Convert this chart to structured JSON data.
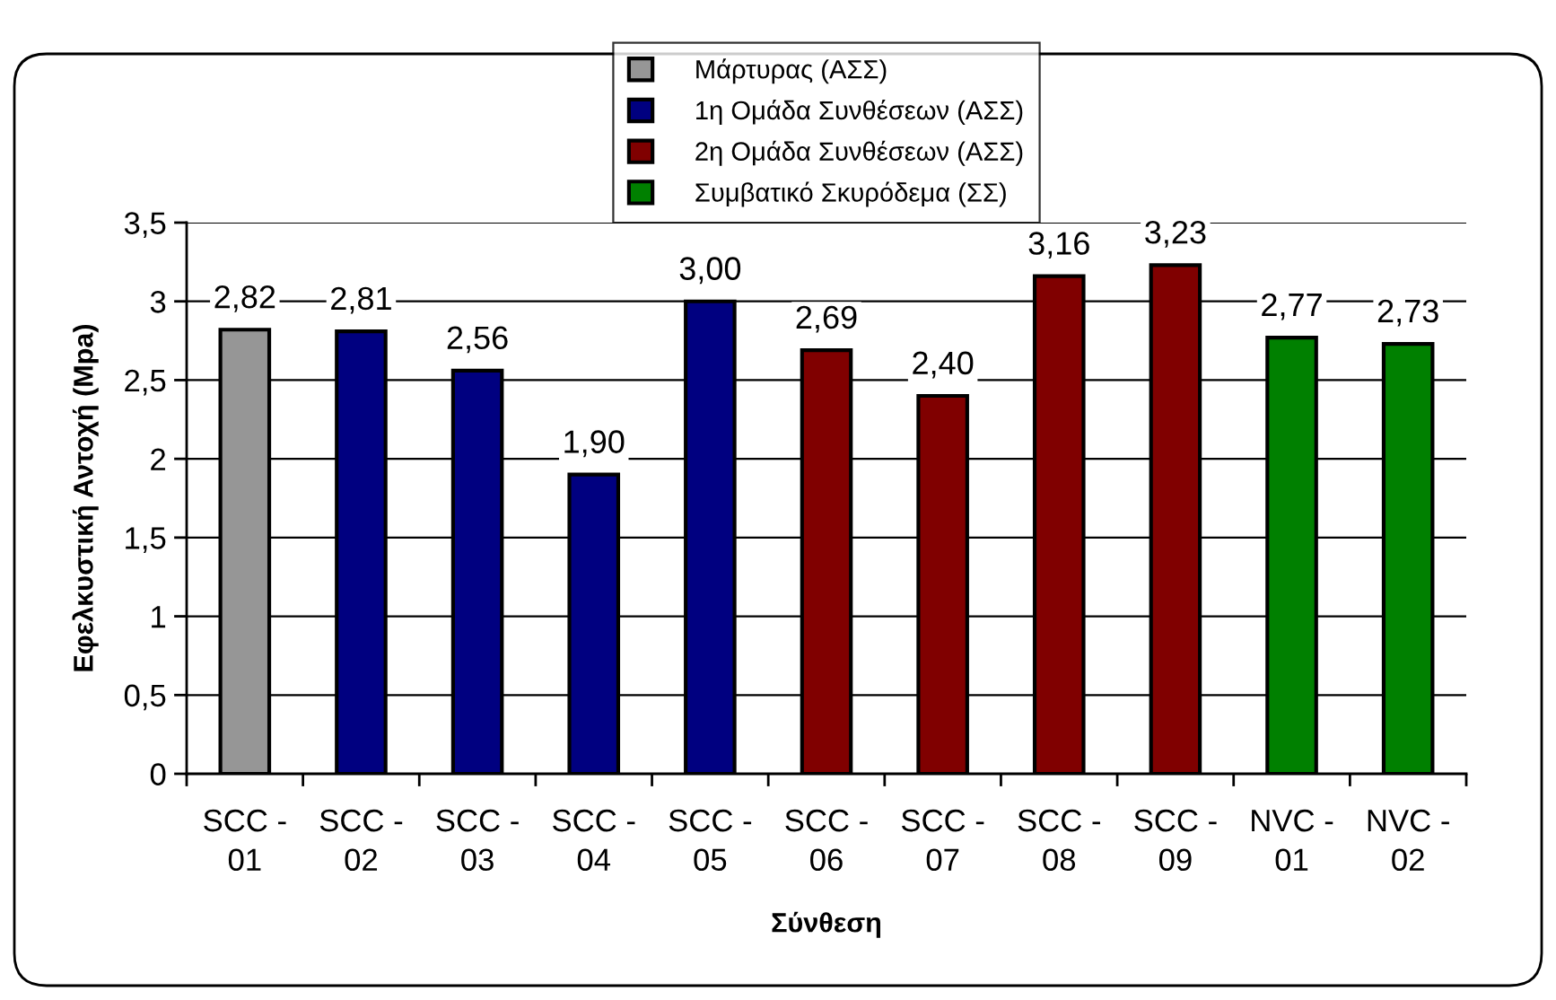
{
  "chart_data": {
    "type": "bar",
    "stacked": true,
    "categories": [
      "SCC - 01",
      "SCC - 02",
      "SCC - 03",
      "SCC - 04",
      "SCC - 05",
      "SCC - 06",
      "SCC - 07",
      "SCC - 08",
      "SCC - 09",
      "NVC - 01",
      "NVC - 02"
    ],
    "series": [
      {
        "name": "Μάρτυρας (ΑΣΣ)",
        "color": "#969696",
        "values": [
          2.82,
          null,
          null,
          null,
          null,
          null,
          null,
          null,
          null,
          null,
          null
        ],
        "value_labels": [
          "2,82",
          null,
          null,
          null,
          null,
          null,
          null,
          null,
          null,
          null,
          null
        ]
      },
      {
        "name": "1η Ομάδα Συνθέσεων (ΑΣΣ)",
        "color": "#000080",
        "values": [
          null,
          2.81,
          2.56,
          1.9,
          3.0,
          null,
          null,
          null,
          null,
          null,
          null
        ],
        "value_labels": [
          null,
          "2,81",
          "2,56",
          "1,90",
          "3,00",
          null,
          null,
          null,
          null,
          null,
          null
        ]
      },
      {
        "name": "2η Ομάδα Συνθέσεων (ΑΣΣ)",
        "color": "#800000",
        "values": [
          null,
          null,
          null,
          null,
          null,
          2.69,
          2.4,
          3.16,
          3.23,
          null,
          null
        ],
        "value_labels": [
          null,
          null,
          null,
          null,
          null,
          "2,69",
          "2,40",
          "3,16",
          "3,23",
          null,
          null
        ]
      },
      {
        "name": "Συμβατικό Σκυρόδεμα (ΣΣ)",
        "color": "#008000",
        "values": [
          null,
          null,
          null,
          null,
          null,
          null,
          null,
          null,
          null,
          2.77,
          2.73
        ],
        "value_labels": [
          null,
          null,
          null,
          null,
          null,
          null,
          null,
          null,
          null,
          "2,77",
          "2,73"
        ]
      }
    ],
    "xlabel": "Σύνθεση",
    "ylabel": "Εφελκυστική Αντοχή (Mpa)",
    "ylim": [
      0,
      3.5
    ],
    "yticks": [
      0,
      {
        "value": 0.5,
        "label": "0,5"
      },
      1,
      {
        "value": 1.5,
        "label": "1,5"
      },
      2,
      {
        "value": 2.5,
        "label": "2,5"
      },
      3,
      {
        "value": 3.5,
        "label": "3,5"
      }
    ],
    "grid": "y",
    "legend": "top"
  }
}
